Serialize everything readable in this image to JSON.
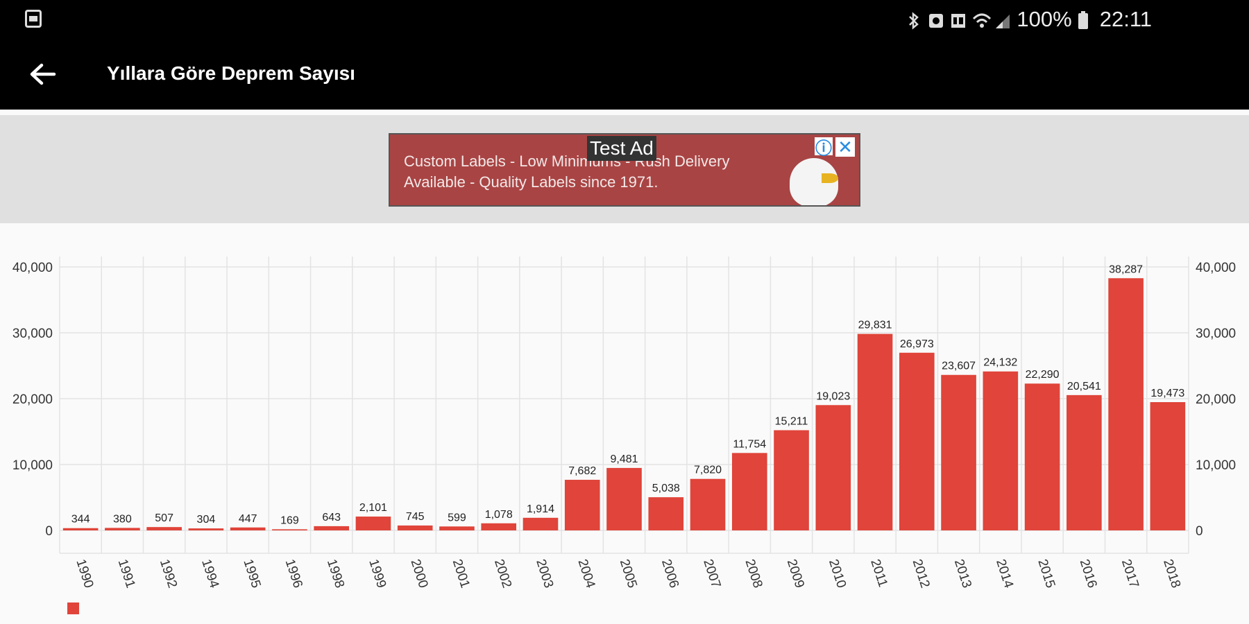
{
  "status_bar": {
    "battery": "100%",
    "time": "22:11",
    "icons": [
      "app-icon",
      "bluetooth-icon",
      "alarm-icon",
      "hd-icon",
      "wifi-icon",
      "signal-icon",
      "battery-icon"
    ]
  },
  "app_bar": {
    "title": "Yıllara Göre Deprem Sayısı",
    "back_icon": "back-arrow-icon"
  },
  "ad": {
    "tag": "Test Ad",
    "text": "Custom Labels - Low Minimums - Rush Delivery Available - Quality Labels since 1971.",
    "info_icon": "info-icon",
    "close_icon": "close-icon"
  },
  "colors": {
    "bar": "#e0443a",
    "grid": "#e3e3e3"
  },
  "chart_data": {
    "type": "bar",
    "categories": [
      "1990",
      "1991",
      "1992",
      "1994",
      "1995",
      "1996",
      "1998",
      "1999",
      "2000",
      "2001",
      "2002",
      "2003",
      "2004",
      "2005",
      "2006",
      "2007",
      "2008",
      "2009",
      "2010",
      "2011",
      "2012",
      "2013",
      "2014",
      "2015",
      "2016",
      "2017",
      "2018"
    ],
    "values": [
      344,
      380,
      507,
      304,
      447,
      169,
      643,
      2101,
      745,
      599,
      1078,
      1914,
      7682,
      9481,
      5038,
      7820,
      11754,
      15211,
      19023,
      29831,
      26973,
      23607,
      24132,
      22290,
      20541,
      38287,
      19473
    ],
    "value_labels": [
      "344",
      "380",
      "507",
      "304",
      "447",
      "169",
      "643",
      "2,101",
      "745",
      "599",
      "1,078",
      "1,914",
      "7,682",
      "9,481",
      "5,038",
      "7,820",
      "11,754",
      "15,211",
      "19,023",
      "29,831",
      "26,973",
      "23,607",
      "24,132",
      "22,290",
      "20,541",
      "38,287",
      "19,473"
    ],
    "ylim": [
      0,
      40000
    ],
    "y_ticks": [
      0,
      10000,
      20000,
      30000,
      40000
    ],
    "y_tick_labels": [
      "0",
      "10,000",
      "20,000",
      "30,000",
      "40,000"
    ],
    "dual_y_axis": true,
    "grid": true,
    "legend": "bottom-left",
    "title": "",
    "xlabel": "",
    "ylabel": ""
  }
}
